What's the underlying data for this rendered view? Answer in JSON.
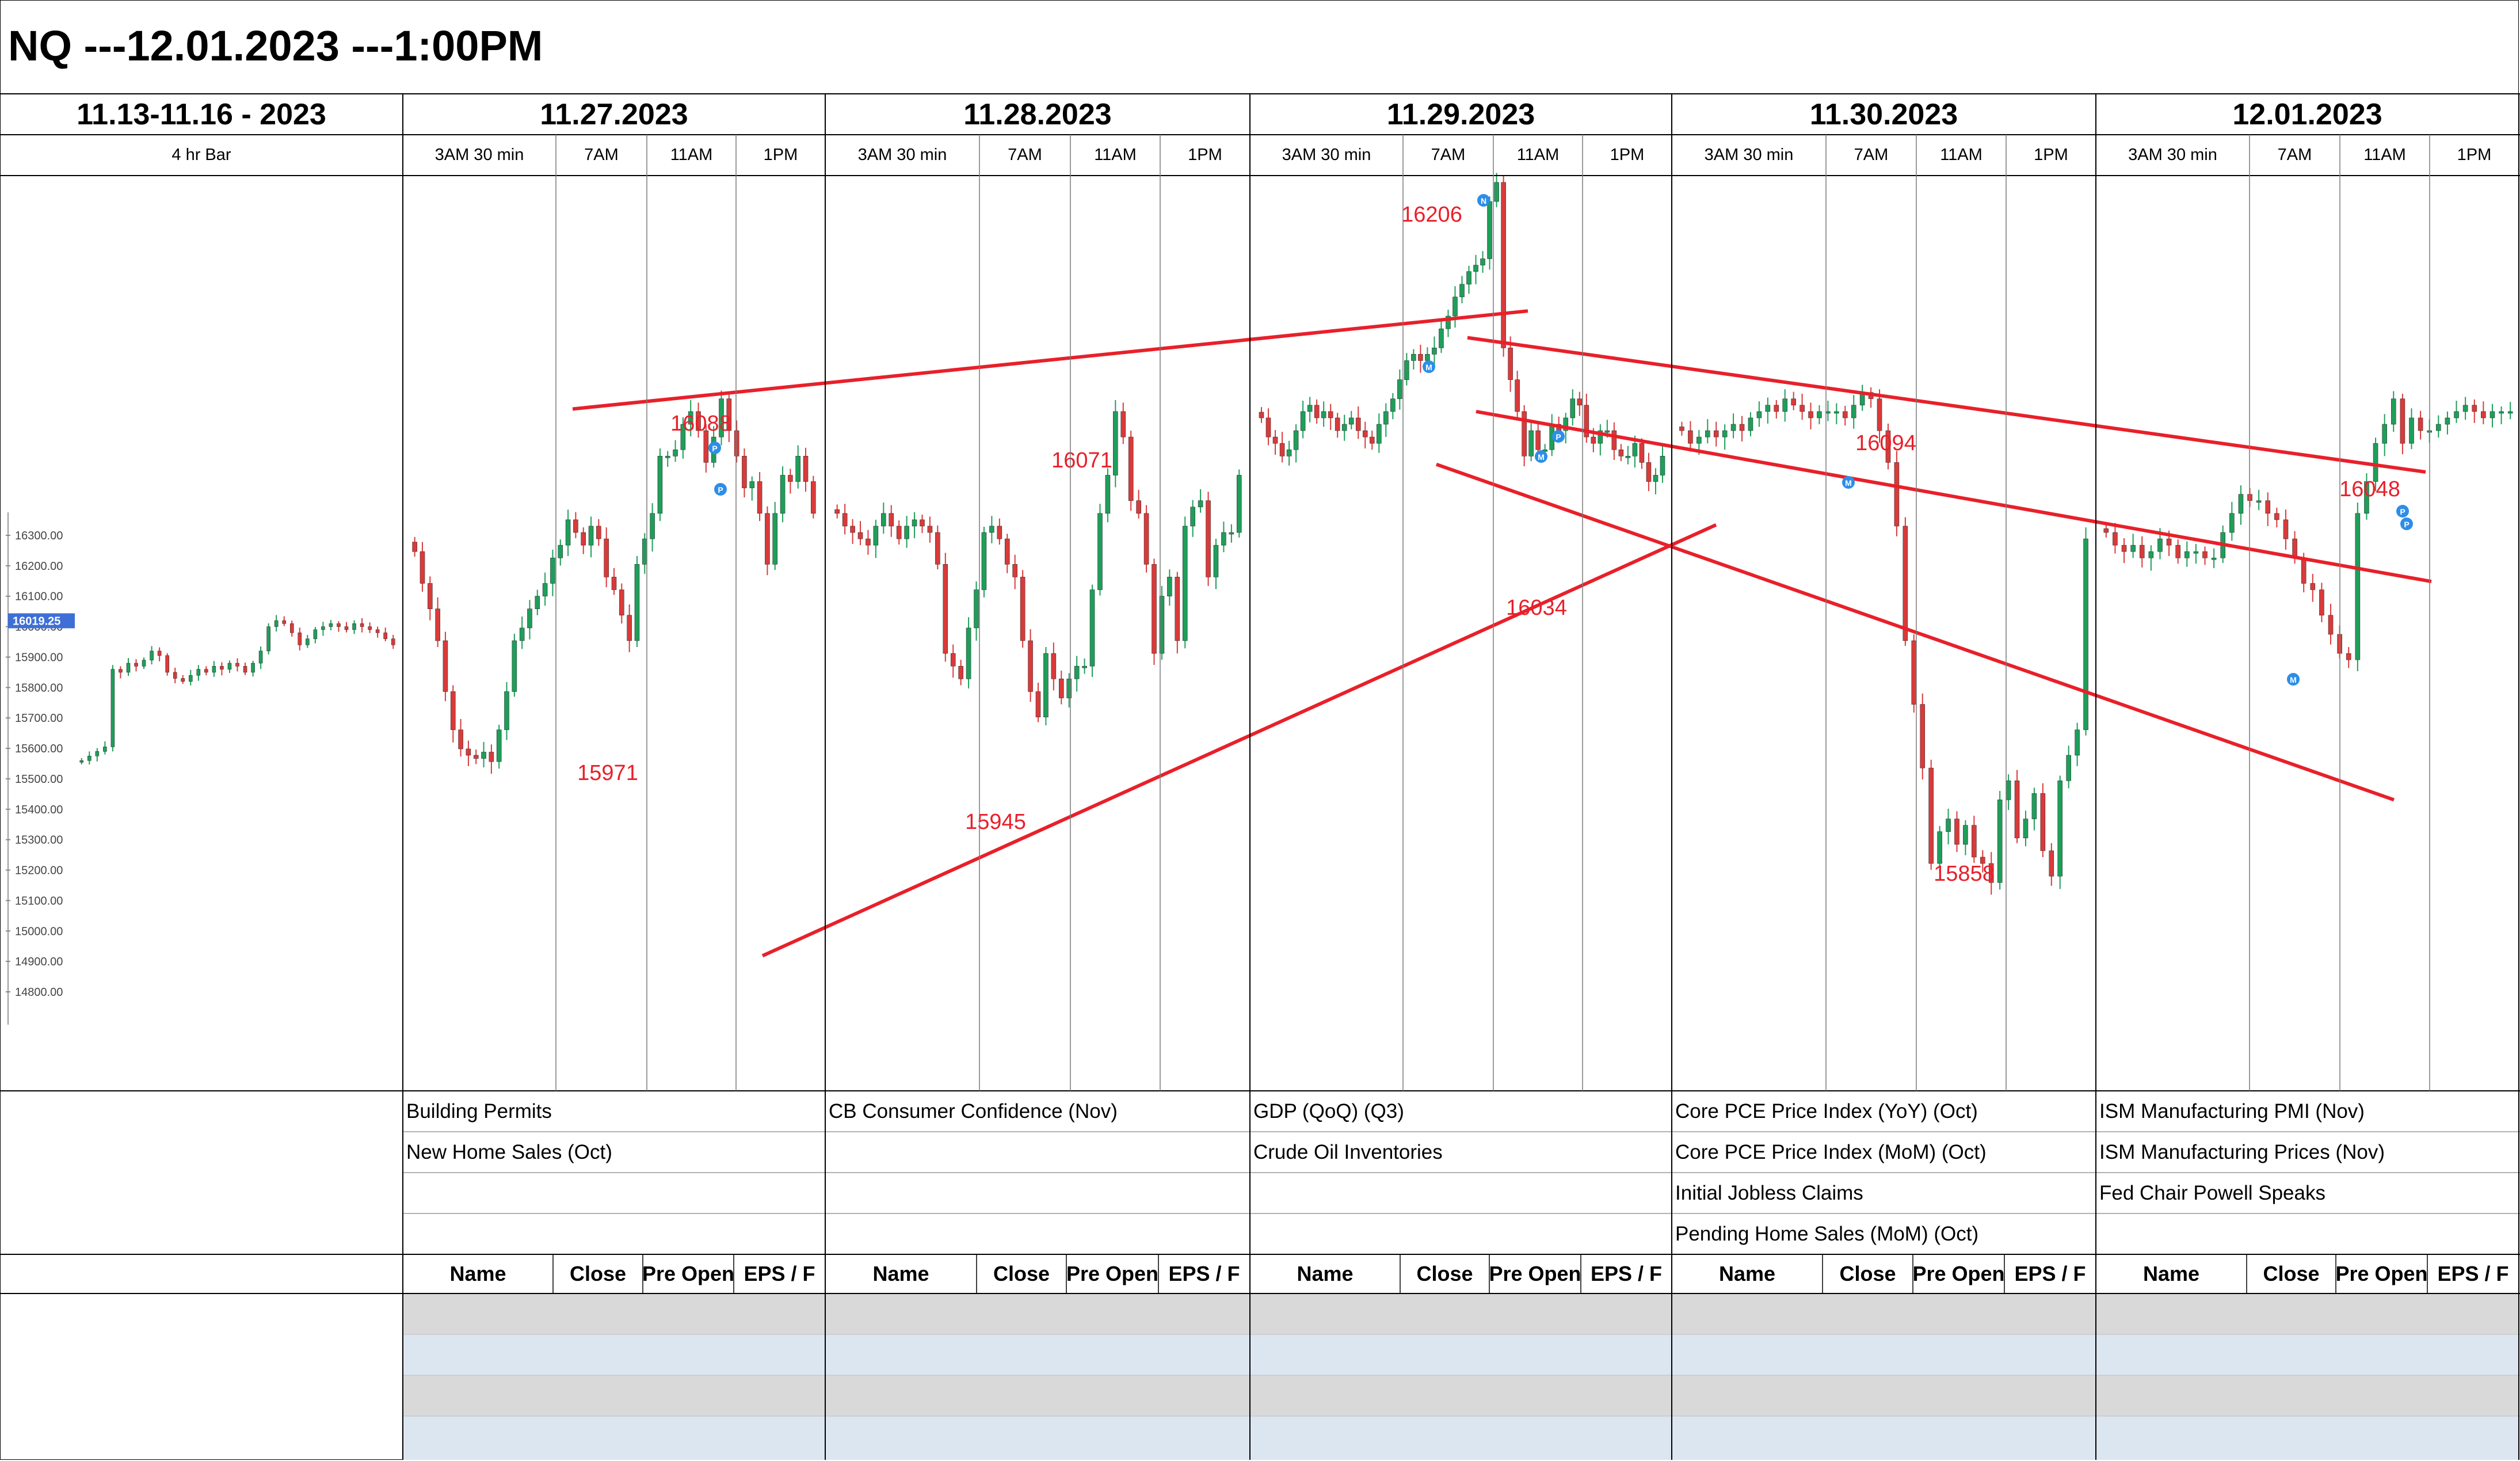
{
  "title": "NQ ---12.01.2023 ---1:00PM",
  "left_panel": {
    "date": "11.13-11.16 - 2023",
    "sub": "4 hr Bar"
  },
  "days": [
    {
      "date": "11.27.2023",
      "sessions": [
        "3AM 30 min",
        "7AM",
        "11AM",
        "1PM"
      ]
    },
    {
      "date": "11.28.2023",
      "sessions": [
        "3AM 30 min",
        "7AM",
        "11AM",
        "1PM"
      ]
    },
    {
      "date": "11.29.2023",
      "sessions": [
        "3AM 30 min",
        "7AM",
        "11AM",
        "1PM"
      ]
    },
    {
      "date": "11.30.2023",
      "sessions": [
        "3AM 30 min",
        "7AM",
        "11AM",
        "1PM"
      ]
    },
    {
      "date": "12.01.2023",
      "sessions": [
        "3AM 30 min",
        "7AM",
        "11AM",
        "1PM"
      ]
    }
  ],
  "events": [
    [
      "Building Permits",
      "New Home Sales (Oct)",
      "",
      ""
    ],
    [
      "CB Consumer Confidence (Nov)",
      "",
      "",
      ""
    ],
    [
      "GDP (QoQ) (Q3)",
      "Crude Oil Inventories",
      "",
      ""
    ],
    [
      "Core PCE Price Index (YoY) (Oct)",
      "Core PCE Price Index (MoM) (Oct)",
      "Initial Jobless Claims",
      "Pending Home Sales (MoM) (Oct)"
    ],
    [
      "ISM Manufacturing PMI (Nov)",
      "ISM Manufacturing Prices (Nov)",
      "Fed Chair Powell Speaks",
      ""
    ]
  ],
  "earnings_headers": [
    "Name",
    "Close",
    "Pre Open",
    "EPS / F"
  ],
  "colors": {
    "up": "#1e9e5a",
    "down": "#d93a3a",
    "trend": "#e8202a",
    "label": "#e8202a",
    "row_gray": "#d9d9d9",
    "row_blue": "#dce6f1",
    "price_tag": "#3d6fd6"
  },
  "price_axis": {
    "ticks": [
      "16300.00",
      "16200.00",
      "16100.00",
      "16000.00",
      "15900.00",
      "15800.00",
      "15700.00",
      "15600.00",
      "15500.00",
      "15400.00",
      "15300.00",
      "15200.00",
      "15100.00",
      "15000.00",
      "14900.00",
      "14800.00"
    ],
    "current_price": "16019.25"
  },
  "chart_data": {
    "type": "candlestick",
    "title": "NQ ---12.01.2023 ---1:00PM",
    "ylim": [
      14750,
      16350
    ],
    "y_ticks": [
      16300,
      16200,
      16100,
      16000,
      15900,
      15800,
      15700,
      15600,
      15500,
      15400,
      15300,
      15200,
      15100,
      15000,
      14900,
      14800
    ],
    "current_price": 16019.25,
    "annotations": [
      {
        "text": "16088",
        "day": "11.27.2023"
      },
      {
        "text": "15971",
        "day": "11.27.2023"
      },
      {
        "text": "16071",
        "day": "11.28.2023"
      },
      {
        "text": "15945",
        "day": "11.28.2023"
      },
      {
        "text": "16206",
        "day": "11.29.2023"
      },
      {
        "text": "16034",
        "day": "11.29.2023"
      },
      {
        "text": "16094",
        "day": "11.30.2023"
      },
      {
        "text": "15858",
        "day": "11.30.2023"
      },
      {
        "text": "16048",
        "day": "12.01.2023"
      }
    ],
    "panels": [
      {
        "name": "11.13-11.16 - 2023",
        "closes": [
          15560,
          15575,
          15590,
          15605,
          15860,
          15850,
          15880,
          15870,
          15890,
          15920,
          15905,
          15850,
          15830,
          15820,
          15840,
          15860,
          15850,
          15870,
          15860,
          15880,
          15870,
          15850,
          15880,
          15920,
          16000,
          16020,
          16010,
          15980,
          15940,
          15960,
          15990,
          16000,
          16010,
          16000,
          15990,
          16010,
          16000,
          15990,
          15980,
          15960,
          15940
        ]
      },
      {
        "name": "11.27.2023",
        "closes": [
          15840,
          15790,
          15750,
          15700,
          15620,
          15560,
          15530,
          15520,
          15515,
          15525,
          15510,
          15560,
          15620,
          15700,
          15720,
          15750,
          15770,
          15790,
          15830,
          15850,
          15890,
          15870,
          15850,
          15880,
          15860,
          15800,
          15780,
          15740,
          15700,
          15820,
          15860,
          15900,
          15990,
          15990,
          16000,
          16040,
          16060,
          16030,
          15980,
          16020,
          16080,
          16030,
          15990,
          15940,
          15950,
          15900,
          15820,
          15900,
          15960,
          15950,
          15990,
          15950,
          15900
        ]
      },
      {
        "name": "11.28.2023",
        "closes": [
          15900,
          15880,
          15870,
          15860,
          15850,
          15880,
          15900,
          15880,
          15860,
          15880,
          15890,
          15880,
          15870,
          15820,
          15680,
          15660,
          15640,
          15720,
          15780,
          15870,
          15880,
          15860,
          15820,
          15800,
          15700,
          15620,
          15580,
          15680,
          15640,
          15610,
          15640,
          15660,
          15660,
          15780,
          15900,
          15960,
          16060,
          16020,
          15920,
          15900,
          15820,
          15680,
          15770,
          15800,
          15700,
          15880,
          15910,
          15920,
          15800,
          15850,
          15870,
          15870,
          15960
        ]
      },
      {
        "name": "11.29.2023",
        "closes": [
          16050,
          16020,
          16010,
          15990,
          16000,
          16030,
          16060,
          16070,
          16050,
          16060,
          16050,
          16030,
          16040,
          16050,
          16030,
          16020,
          16010,
          16040,
          16060,
          16080,
          16110,
          16140,
          16150,
          16140,
          16150,
          16160,
          16190,
          16210,
          16240,
          16260,
          16280,
          16290,
          16300,
          16390,
          16420,
          16160,
          16110,
          16060,
          15990,
          16030,
          16000,
          16000,
          16040,
          16030,
          16050,
          16080,
          16070,
          16020,
          16010,
          16030,
          16030,
          16000,
          15990,
          15990,
          16010,
          15980,
          15950,
          15960,
          15990
        ]
      },
      {
        "name": "11.30.2023",
        "closes": [
          16030,
          16010,
          16020,
          16030,
          16020,
          16030,
          16040,
          16030,
          16050,
          16060,
          16070,
          16060,
          16080,
          16070,
          16060,
          16050,
          16060,
          16060,
          16060,
          16050,
          16070,
          16090,
          16080,
          16030,
          15980,
          15880,
          15700,
          15600,
          15500,
          15350,
          15400,
          15420,
          15380,
          15410,
          15360,
          15350,
          15320,
          15450,
          15480,
          15390,
          15420,
          15460,
          15370,
          15330,
          15480,
          15520,
          15560,
          15860
        ]
      },
      {
        "name": "12.01.2023",
        "closes": [
          15870,
          15850,
          15840,
          15850,
          15830,
          15840,
          15860,
          15850,
          15830,
          15840,
          15840,
          15830,
          15830,
          15870,
          15900,
          15930,
          15920,
          15920,
          15900,
          15890,
          15860,
          15830,
          15790,
          15780,
          15740,
          15710,
          15680,
          15670,
          15900,
          15950,
          16010,
          16040,
          16080,
          16010,
          16050,
          16030,
          16030,
          16040,
          16050,
          16060,
          16070,
          16060,
          16050,
          16060,
          16060,
          16060
        ]
      }
    ],
    "trendlines": [
      {
        "name": "upper-channel-up",
        "from": [
          "11.27.2023",
          16064
        ],
        "to": [
          "11.29.2023",
          16218
        ]
      },
      {
        "name": "lower-channel-up",
        "from": [
          "11.28.2023",
          15205
        ],
        "to": [
          "11.29.2023",
          15882
        ]
      },
      {
        "name": "upper-channel-down",
        "from": [
          "11.29.2023",
          16176
        ],
        "to": [
          "12.01.2023",
          15965
        ]
      },
      {
        "name": "middle-channel-down",
        "from": [
          "11.29.2023",
          16060
        ],
        "to": [
          "12.01.2023",
          15793
        ]
      },
      {
        "name": "lower-channel-down",
        "from": [
          "11.29.2023",
          15977
        ],
        "to": [
          "12.01.2023",
          15450
        ]
      }
    ]
  }
}
